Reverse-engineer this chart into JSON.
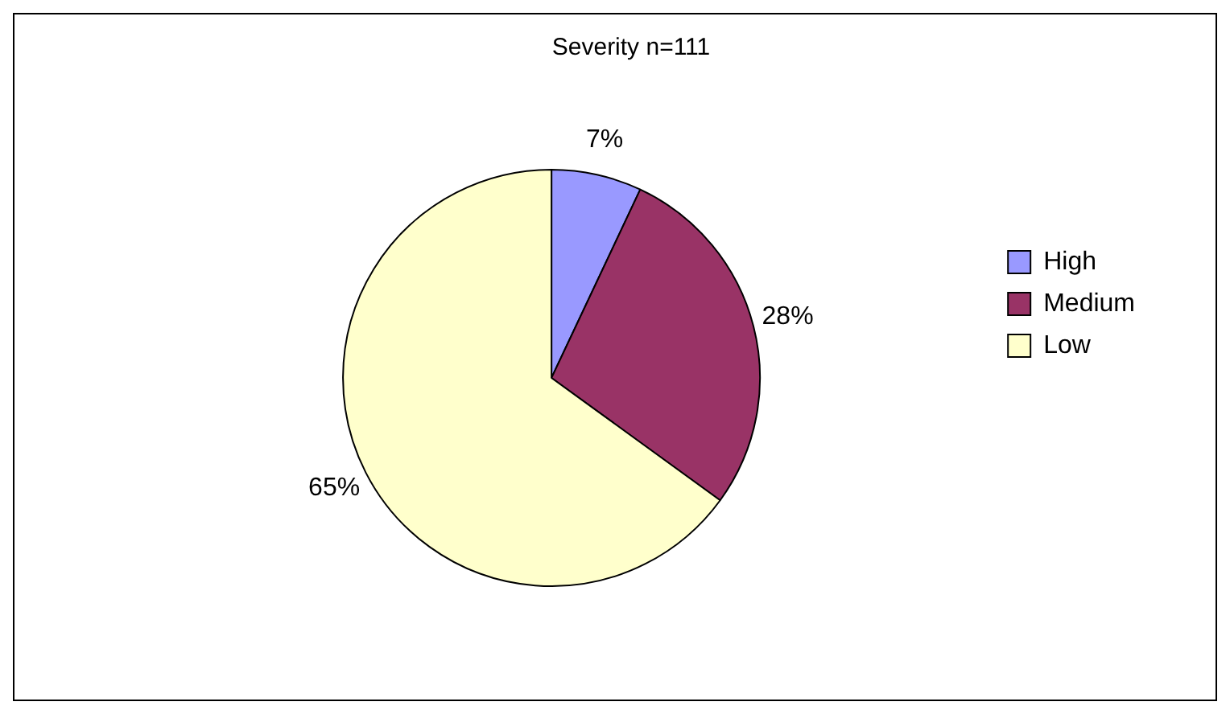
{
  "chart_data": {
    "type": "pie",
    "title": "Severity n=111",
    "categories": [
      "High",
      "Medium",
      "Low"
    ],
    "values": [
      7,
      28,
      65
    ],
    "colors": [
      "#9999ff",
      "#993366",
      "#ffffcc"
    ],
    "value_labels": [
      "7%",
      "28%",
      "65%"
    ],
    "legend": "right"
  }
}
